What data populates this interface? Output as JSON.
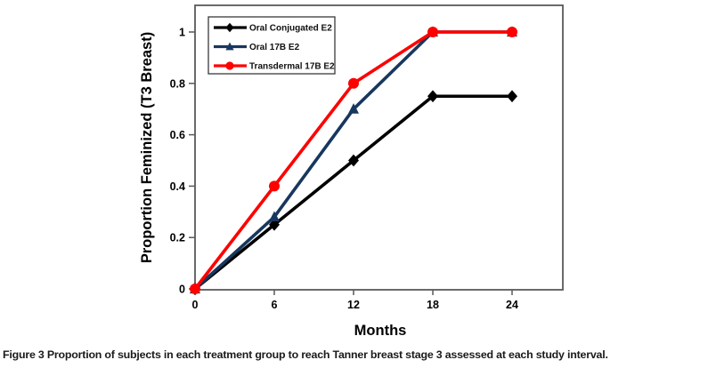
{
  "figure_caption": {
    "label": "Figure 3",
    "text": "Proportion of subjects in each treatment group to reach Tanner breast stage 3 assessed at each study interval."
  },
  "chart_data": {
    "type": "line",
    "x": [
      0,
      6,
      12,
      18,
      24
    ],
    "series": [
      {
        "name": "Oral Conjugated E2",
        "color": "#000000",
        "marker": "diamond",
        "values": [
          0,
          0.25,
          0.5,
          0.75,
          0.75
        ]
      },
      {
        "name": "Oral 17B E2",
        "color": "#17375E",
        "marker": "triangle",
        "values": [
          0,
          0.28,
          0.7,
          1,
          1
        ]
      },
      {
        "name": "Transdermal 17B E2",
        "color": "#FE0000",
        "marker": "circle",
        "values": [
          0,
          0.4,
          0.8,
          1,
          1
        ]
      }
    ],
    "xlabel": "Months",
    "ylabel": "Proportion Feminized (T3 Breast)",
    "xticks": [
      0,
      6,
      12,
      18,
      24
    ],
    "xtick_labels": [
      "0",
      "6",
      "12",
      "18",
      "24"
    ],
    "yticks": [
      0,
      0.2,
      0.4,
      0.6,
      0.8,
      1
    ],
    "ytick_labels": [
      "0",
      "0.2",
      "0.4",
      "0.6",
      "0.8",
      "1"
    ],
    "xlim": [
      0,
      27.8
    ],
    "ylim": [
      0,
      1.1
    ],
    "grid": false,
    "legend_position": "top-left",
    "frame_color": "#595959",
    "background_color": "#ffffff"
  }
}
